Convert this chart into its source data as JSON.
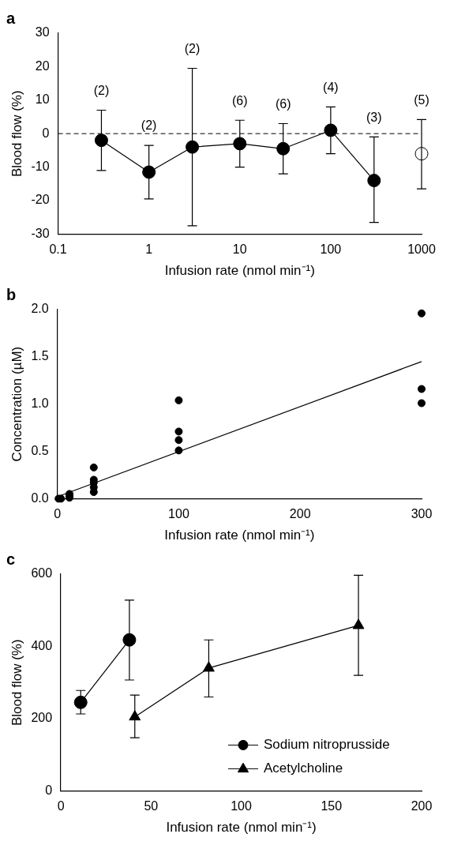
{
  "chart_data": [
    {
      "type": "line",
      "title": "a",
      "xlabel": "Infusion rate (nmol min⁻¹)",
      "ylabel": "Blood flow (%)",
      "log": "x",
      "xlim": [
        0.1,
        1000
      ],
      "xticks": [
        0.1,
        1,
        10,
        100,
        1000
      ],
      "ylim": [
        -30,
        30
      ],
      "yticks": [
        -30,
        -20,
        -10,
        0,
        10,
        20,
        30
      ],
      "marker": "circle",
      "series": [
        {
          "color": "#000000",
          "x": [
            0.3,
            1,
            3,
            10,
            30,
            100,
            300
          ],
          "values": [
            -2,
            -11.5,
            -4,
            -3,
            -4.5,
            1,
            -14
          ],
          "errors": [
            [
              -11,
              7
            ],
            [
              -19.5,
              -3.5
            ],
            [
              -27.5,
              19.5
            ],
            [
              -10,
              4
            ],
            [
              -12,
              3
            ],
            [
              -6,
              8
            ],
            [
              -26.5,
              -1
            ]
          ]
        },
        {
          "type": "scatter",
          "color": "#ffffff",
          "x": [
            1000
          ],
          "values": [
            -6
          ],
          "errors": [
            [
              -16.5,
              4.2
            ]
          ]
        }
      ],
      "ref_lines": [
        {
          "axis": "y",
          "value": 0,
          "line_style": "dashed"
        }
      ],
      "annotations": [
        {
          "text": "(2)",
          "x": 0.3,
          "y": 7
        },
        {
          "text": "(2)",
          "x": 1,
          "y": -3.5
        },
        {
          "text": "(2)",
          "x": 3,
          "y": 19.5
        },
        {
          "text": "(6)",
          "x": 10,
          "y": 4
        },
        {
          "text": "(6)",
          "x": 30,
          "y": 3
        },
        {
          "text": "(4)",
          "x": 100,
          "y": 8
        },
        {
          "text": "(3)",
          "x": 300,
          "y": -1
        },
        {
          "text": "(5)",
          "x": 1000,
          "y": 4.2
        }
      ]
    },
    {
      "type": "scatter",
      "title": "b",
      "xlabel": "Infusion rate (nmol min⁻¹)",
      "ylabel": "Concentration (µM)",
      "xlim": [
        0,
        300
      ],
      "xticks": [
        0,
        100,
        200,
        300
      ],
      "ylim": [
        0,
        2
      ],
      "yticks": [
        {
          "value": 0,
          "label": "0.0"
        },
        0.5,
        {
          "value": 1,
          "label": "1.0"
        },
        1.5,
        {
          "value": 2,
          "label": "2.0"
        }
      ],
      "marker": "circle",
      "series": [
        {
          "color": "#000000",
          "x": [
            1,
            3,
            10,
            10,
            10,
            30,
            30,
            30,
            30,
            30,
            100,
            100,
            100,
            100,
            300,
            300,
            300
          ],
          "values": [
            0,
            0,
            0.05,
            0.03,
            0.01,
            0.33,
            0.2,
            0.17,
            0.12,
            0.07,
            1.04,
            0.71,
            0.62,
            0.51,
            1.96,
            1.16,
            1.01
          ]
        },
        {
          "type": "line",
          "color": "#000000",
          "marker": "none",
          "x": [
            0,
            300
          ],
          "values": [
            0.02,
            1.45
          ]
        }
      ]
    },
    {
      "type": "line",
      "title": "c",
      "xlabel": "Infusion rate (nmol min⁻¹)",
      "ylabel": "Blood flow (%)",
      "xlim": [
        0,
        200
      ],
      "xticks": [
        0,
        50,
        100,
        150,
        200
      ],
      "ylim": [
        0,
        600
      ],
      "yticks": [
        0,
        200,
        400,
        600
      ],
      "legend": "bottom right",
      "series": [
        {
          "name": "Sodium nitroprusside",
          "color": "#000000",
          "marker": "circle",
          "x": [
            11,
            38
          ],
          "values": [
            245,
            418
          ],
          "errors": [
            [
              213,
              278
            ],
            [
              307,
              528
            ]
          ]
        },
        {
          "name": "Acetylcholine",
          "color": "#000000",
          "marker": "triangle",
          "x": [
            41,
            82,
            165
          ],
          "values": [
            205,
            340,
            458
          ],
          "errors": [
            [
              147,
              265
            ],
            [
              260,
              418
            ],
            [
              320,
              597
            ]
          ]
        }
      ]
    }
  ]
}
